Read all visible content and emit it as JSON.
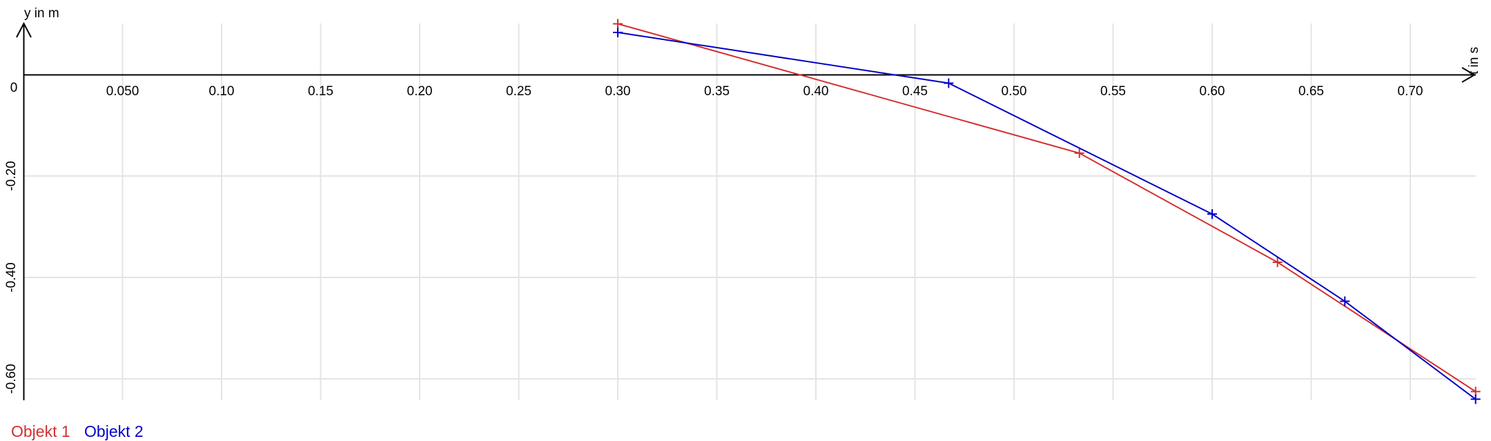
{
  "chart_data": {
    "type": "line",
    "xlabel": "t in s",
    "ylabel": "y in m",
    "xlim": [
      0,
      0.735
    ],
    "ylim": [
      -0.64,
      0.1
    ],
    "x_ticks": [
      0.05,
      0.1,
      0.15,
      0.2,
      0.25,
      0.3,
      0.35,
      0.4,
      0.45,
      0.5,
      0.55,
      0.6,
      0.65,
      0.7
    ],
    "x_tick_labels": [
      "0.050",
      "0.10",
      "0.15",
      "0.20",
      "0.25",
      "0.30",
      "0.35",
      "0.40",
      "0.45",
      "0.50",
      "0.55",
      "0.60",
      "0.65",
      "0.70"
    ],
    "y_ticks": [
      0,
      -0.2,
      -0.4,
      -0.6
    ],
    "y_tick_labels": [
      "0",
      "-0.20",
      "-0.40",
      "-0.60"
    ],
    "grid": true,
    "markers": "plus",
    "series": [
      {
        "name": "Objekt 1",
        "color": "#d32f2f",
        "x": [
          0.3,
          0.533,
          0.633,
          0.733
        ],
        "y": [
          0.1,
          -0.155,
          -0.37,
          -0.625
        ]
      },
      {
        "name": "Objekt 2",
        "color": "#0000c8",
        "x": [
          0.3,
          0.467,
          0.6,
          0.667,
          0.733
        ],
        "y": [
          0.083,
          -0.017,
          -0.275,
          -0.447,
          -0.64
        ]
      }
    ]
  }
}
